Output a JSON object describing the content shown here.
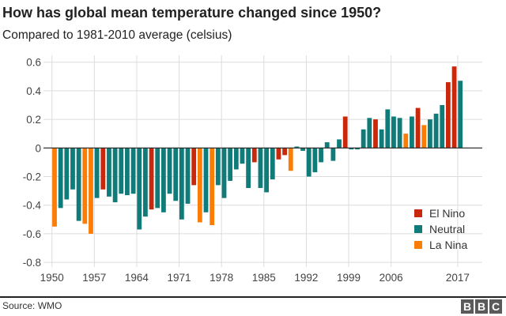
{
  "header": {
    "title": "How has global mean temperature changed since 1950?",
    "subtitle": "Compared to 1981-2010 average (celsius)"
  },
  "footer": {
    "source": "Source: WMO",
    "logo": "BBC"
  },
  "chart_data": {
    "type": "bar",
    "title": "How has global mean temperature changed since 1950?",
    "subtitle": "Compared to 1981-2010 average (celsius)",
    "xlabel": "",
    "ylabel": "",
    "ylim": [
      -0.8,
      0.6
    ],
    "yticks": [
      0.6,
      0.4,
      0.2,
      0,
      -0.2,
      -0.4,
      -0.6,
      -0.8
    ],
    "ytick_labels": [
      "0.6",
      "0.4",
      "0.2",
      "0",
      "-0.2",
      "-0.4",
      "-0.6",
      "-0.8"
    ],
    "xticks": [
      "1950",
      "1957",
      "1964",
      "1971",
      "1978",
      "1985",
      "1992",
      "1999",
      "2006",
      "2017"
    ],
    "grid": true,
    "legend_position": "bottom-right",
    "legend": [
      {
        "key": "elnino",
        "label": "El Nino",
        "color": "#c8280c"
      },
      {
        "key": "neutral",
        "label": "Neutral",
        "color": "#0f7c79"
      },
      {
        "key": "lanina",
        "label": "La Nina",
        "color": "#fb7d06"
      }
    ],
    "categories": [
      1950,
      1951,
      1952,
      1953,
      1954,
      1955,
      1956,
      1957,
      1958,
      1959,
      1960,
      1961,
      1962,
      1963,
      1964,
      1965,
      1966,
      1967,
      1968,
      1969,
      1970,
      1971,
      1972,
      1973,
      1974,
      1975,
      1976,
      1977,
      1978,
      1979,
      1980,
      1981,
      1982,
      1983,
      1984,
      1985,
      1986,
      1987,
      1988,
      1989,
      1990,
      1991,
      1992,
      1993,
      1994,
      1995,
      1996,
      1997,
      1998,
      1999,
      2000,
      2001,
      2002,
      2003,
      2004,
      2005,
      2006,
      2007,
      2008,
      2009,
      2010,
      2011,
      2012,
      2013,
      2014,
      2015,
      2016,
      2017
    ],
    "values": [
      -0.55,
      -0.42,
      -0.36,
      -0.29,
      -0.51,
      -0.53,
      -0.6,
      -0.35,
      -0.29,
      -0.34,
      -0.38,
      -0.32,
      -0.33,
      -0.32,
      -0.57,
      -0.48,
      -0.43,
      -0.42,
      -0.45,
      -0.32,
      -0.37,
      -0.5,
      -0.39,
      -0.26,
      -0.52,
      -0.45,
      -0.54,
      -0.26,
      -0.35,
      -0.23,
      -0.15,
      -0.11,
      -0.28,
      -0.1,
      -0.28,
      -0.31,
      -0.22,
      -0.08,
      -0.05,
      -0.16,
      0.01,
      -0.02,
      -0.2,
      -0.17,
      -0.1,
      0.04,
      -0.09,
      0.06,
      0.22,
      -0.01,
      -0.01,
      0.13,
      0.21,
      0.2,
      0.13,
      0.27,
      0.22,
      0.21,
      0.1,
      0.22,
      0.28,
      0.16,
      0.2,
      0.24,
      0.3,
      0.46,
      0.57,
      0.47
    ],
    "phase": [
      "lanina",
      "neutral",
      "neutral",
      "neutral",
      "neutral",
      "lanina",
      "lanina",
      "neutral",
      "elnino",
      "neutral",
      "neutral",
      "neutral",
      "neutral",
      "neutral",
      "neutral",
      "neutral",
      "elnino",
      "neutral",
      "neutral",
      "neutral",
      "neutral",
      "neutral",
      "neutral",
      "elnino",
      "lanina",
      "neutral",
      "lanina",
      "neutral",
      "neutral",
      "neutral",
      "neutral",
      "neutral",
      "neutral",
      "elnino",
      "neutral",
      "neutral",
      "neutral",
      "elnino",
      "elnino",
      "lanina",
      "neutral",
      "neutral",
      "neutral",
      "neutral",
      "neutral",
      "neutral",
      "neutral",
      "neutral",
      "elnino",
      "neutral",
      "neutral",
      "neutral",
      "neutral",
      "elnino",
      "neutral",
      "neutral",
      "neutral",
      "neutral",
      "lanina",
      "neutral",
      "elnino",
      "lanina",
      "neutral",
      "neutral",
      "neutral",
      "elnino",
      "elnino",
      "neutral"
    ]
  }
}
